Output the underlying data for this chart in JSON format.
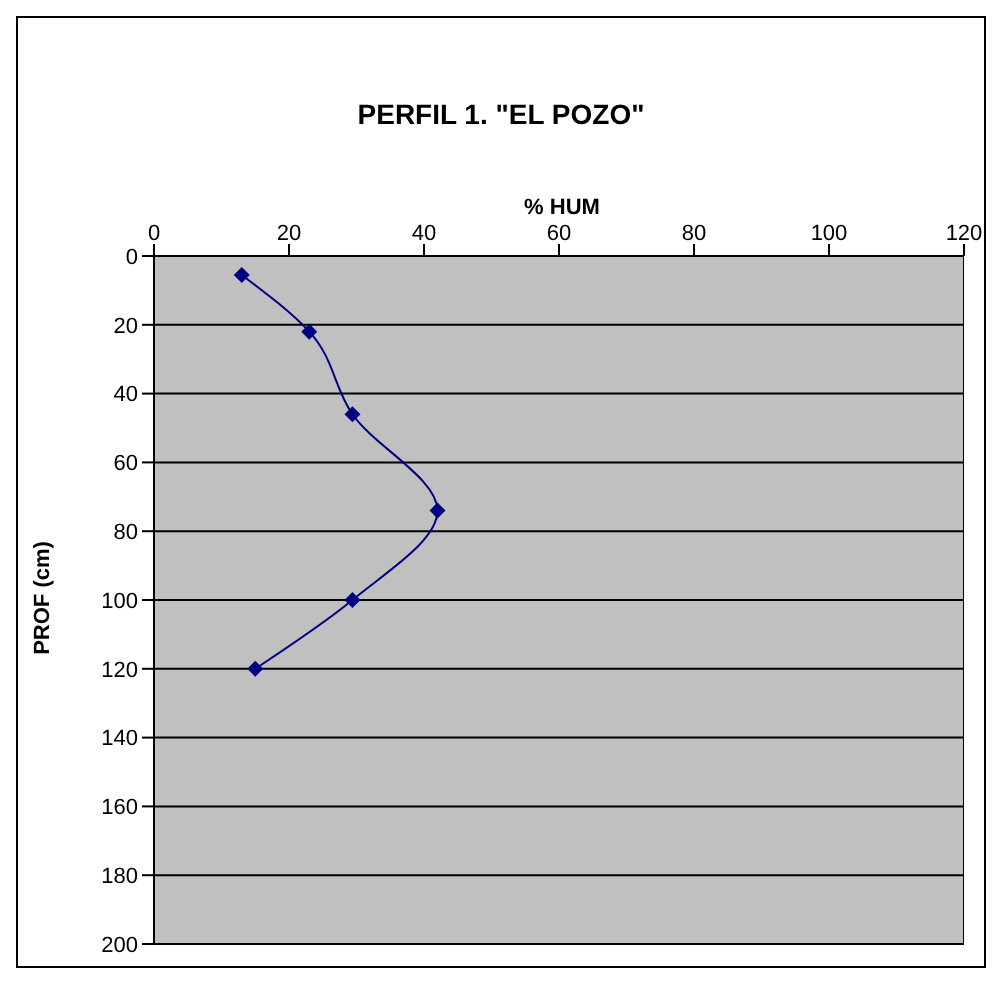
{
  "chart_data": {
    "type": "line",
    "title": "PERFIL 1. \"EL POZO\"",
    "xlabel": "% HUM",
    "ylabel": "PROF (cm)",
    "x": [
      13,
      23,
      29.4,
      42,
      29.4,
      15
    ],
    "series": [
      {
        "color": "#000080",
        "values": [
          5.5,
          22,
          46,
          74,
          100,
          120
        ]
      }
    ],
    "xlim": [
      0,
      120
    ],
    "xticks": [
      0,
      20,
      40,
      60,
      80,
      100,
      120
    ],
    "ylim": [
      200,
      0
    ],
    "yticks": [
      0,
      20,
      40,
      60,
      80,
      100,
      120,
      140,
      160,
      180,
      200
    ],
    "grid": "y",
    "marker": "diamond",
    "line_style": "solid"
  }
}
